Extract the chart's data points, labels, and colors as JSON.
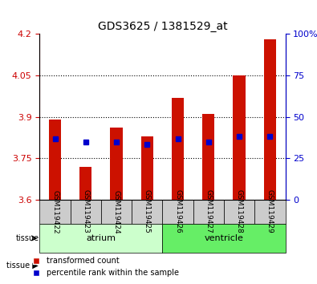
{
  "title": "GDS3625 / 1381529_at",
  "samples": [
    "GSM119422",
    "GSM119423",
    "GSM119424",
    "GSM119425",
    "GSM119426",
    "GSM119427",
    "GSM119428",
    "GSM119429"
  ],
  "red_values": [
    3.89,
    3.72,
    3.86,
    3.83,
    3.97,
    3.91,
    4.05,
    4.18
  ],
  "blue_values": [
    3.82,
    3.81,
    3.81,
    3.8,
    3.82,
    3.81,
    3.83,
    3.83
  ],
  "tissue_groups": [
    {
      "label": "atrium",
      "start": 0,
      "end": 3,
      "color": "#b0f0b0"
    },
    {
      "label": "ventricle",
      "start": 4,
      "end": 7,
      "color": "#44dd44"
    }
  ],
  "ymin": 3.6,
  "ymax": 4.2,
  "yticks": [
    3.6,
    3.75,
    3.9,
    4.05,
    4.2
  ],
  "ytick_labels": [
    "3.6",
    "3.75",
    "3.9",
    "4.05",
    "4.2"
  ],
  "right_yticks": [
    0,
    25,
    50,
    75,
    100
  ],
  "right_ytick_labels": [
    "0",
    "25",
    "50",
    "75",
    "100%"
  ],
  "left_tick_color": "#cc0000",
  "right_tick_color": "#0000cc",
  "bar_color_red": "#cc1100",
  "bar_color_blue": "#0000cc",
  "bar_width": 0.4,
  "grid_linestyle": "dotted",
  "tissue_label": "tissue",
  "legend_items": [
    "transformed count",
    "percentile rank within the sample"
  ],
  "background_color": "#ffffff",
  "plot_area_color": "#ffffff",
  "label_area_color": "#cccccc",
  "atrium_color": "#ccffcc",
  "ventricle_color": "#44ee44"
}
